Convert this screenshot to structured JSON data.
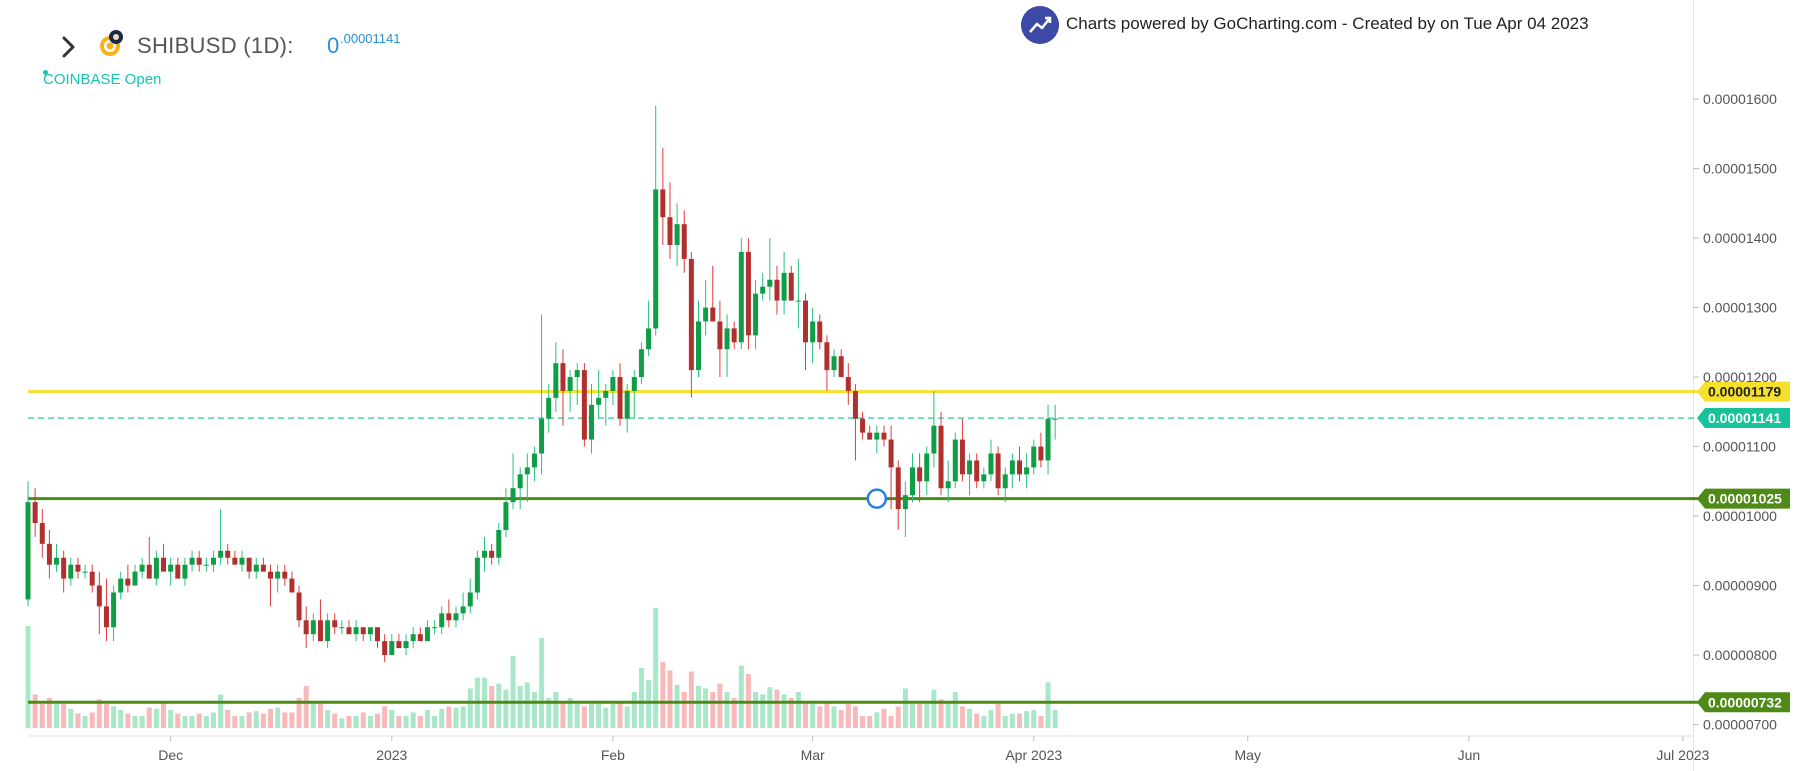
{
  "header": {
    "symbol_title": "SHIBUSD (1D):",
    "price_int": "0",
    "price_dec": ".00001141",
    "status": "COINBASE Open",
    "credit": "Charts powered by GoCharting.com - Created by  on Tue Apr 04 2023"
  },
  "icons": {
    "expand": "chevron-right-icon",
    "coin": "shiba-coin-icon",
    "brand": "trend-up-logo-icon"
  },
  "colors": {
    "up": "#27c27d",
    "down": "#e53a3a",
    "up_body": "#0f9d46",
    "down_body": "#b0302e",
    "resistance": "#f5e12b",
    "support": "#4d8a16",
    "current": "#19c29a",
    "accent": "#2a8fd8"
  },
  "chart_data": {
    "type": "candlestick",
    "title": "SHIBUSD (1D)",
    "x_ticks": [
      "Dec",
      "2023",
      "Feb",
      "Mar",
      "Apr 2023",
      "May",
      "Jun",
      "Jul 2023"
    ],
    "x_tick_dates": [
      "2022-12-01",
      "2023-01-01",
      "2023-02-01",
      "2023-03-01",
      "2023-04-01",
      "2023-05-01",
      "2023-06-01",
      "2023-07-01"
    ],
    "y_ticks": [
      "0.00001600",
      "0.00001500",
      "0.00001400",
      "0.00001300",
      "0.00001200",
      "0.00001100",
      "0.00001000",
      "0.00000900",
      "0.00000800",
      "0.00000700"
    ],
    "ylim": [
      6.95e-06,
      1.685e-05
    ],
    "xlim": [
      "2022-11-11",
      "2023-07-02"
    ],
    "lines": [
      {
        "label": "0.00001179",
        "value": 1.179e-05,
        "style": "solid",
        "color": "#f5e12b"
      },
      {
        "label": "0.00001141",
        "value": 1.141e-05,
        "style": "dashed",
        "color": "#19c29a"
      },
      {
        "label": "0.00001025",
        "value": 1.025e-05,
        "style": "solid",
        "color": "#4d8a16"
      },
      {
        "label": "0.00000732",
        "value": 7.32e-06,
        "style": "solid",
        "color": "#4d8a16"
      }
    ],
    "marker": {
      "date": "2023-03-10",
      "value": 1.025e-05
    },
    "candles": [
      [
        "2022-11-11",
        8.8e-06,
        1.05e-05,
        8.7e-06,
        1.02e-05,
        0.85
      ],
      [
        "2022-11-12",
        1.02e-05,
        1.04e-05,
        9.7e-06,
        9.9e-06,
        0.28
      ],
      [
        "2022-11-13",
        9.9e-06,
        1.01e-05,
        9.4e-06,
        9.6e-06,
        0.2
      ],
      [
        "2022-11-14",
        9.6e-06,
        9.8e-06,
        9.1e-06,
        9.3e-06,
        0.25
      ],
      [
        "2022-11-15",
        9.3e-06,
        9.6e-06,
        9.2e-06,
        9.4e-06,
        0.2
      ],
      [
        "2022-11-16",
        9.4e-06,
        9.5e-06,
        8.9e-06,
        9.1e-06,
        0.22
      ],
      [
        "2022-11-17",
        9.1e-06,
        9.4e-06,
        9e-06,
        9.3e-06,
        0.16
      ],
      [
        "2022-11-18",
        9.3e-06,
        9.4e-06,
        9.1e-06,
        9.2e-06,
        0.12
      ],
      [
        "2022-11-19",
        9.2e-06,
        9.3e-06,
        9.1e-06,
        9.2e-06,
        0.1
      ],
      [
        "2022-11-20",
        9.2e-06,
        9.3e-06,
        8.9e-06,
        9e-06,
        0.13
      ],
      [
        "2022-11-21",
        9e-06,
        9.2e-06,
        8.3e-06,
        8.7e-06,
        0.24
      ],
      [
        "2022-11-22",
        8.7e-06,
        9.1e-06,
        8.2e-06,
        8.4e-06,
        0.2
      ],
      [
        "2022-11-23",
        8.4e-06,
        9e-06,
        8.2e-06,
        8.9e-06,
        0.18
      ],
      [
        "2022-11-24",
        8.9e-06,
        9.2e-06,
        8.8e-06,
        9.1e-06,
        0.15
      ],
      [
        "2022-11-25",
        9.1e-06,
        9.3e-06,
        8.9e-06,
        9e-06,
        0.12
      ],
      [
        "2022-11-26",
        9e-06,
        9.3e-06,
        9e-06,
        9.2e-06,
        0.1
      ],
      [
        "2022-11-27",
        9.2e-06,
        9.4e-06,
        9.1e-06,
        9.3e-06,
        0.1
      ],
      [
        "2022-11-28",
        9.3e-06,
        9.7e-06,
        9.1e-06,
        9.1e-06,
        0.17
      ],
      [
        "2022-11-29",
        9.1e-06,
        9.5e-06,
        9e-06,
        9.4e-06,
        0.16
      ],
      [
        "2022-11-30",
        9.4e-06,
        9.6e-06,
        9.2e-06,
        9.2e-06,
        0.22
      ],
      [
        "2022-12-01",
        9.2e-06,
        9.4e-06,
        9e-06,
        9.3e-06,
        0.15
      ],
      [
        "2022-12-02",
        9.3e-06,
        9.4e-06,
        9.1e-06,
        9.1e-06,
        0.12
      ],
      [
        "2022-12-03",
        9.1e-06,
        9.4e-06,
        9e-06,
        9.3e-06,
        0.1
      ],
      [
        "2022-12-04",
        9.3e-06,
        9.5e-06,
        9.2e-06,
        9.4e-06,
        0.1
      ],
      [
        "2022-12-05",
        9.4e-06,
        9.5e-06,
        9.2e-06,
        9.3e-06,
        0.12
      ],
      [
        "2022-12-06",
        9.3e-06,
        9.4e-06,
        9.2e-06,
        9.3e-06,
        0.1
      ],
      [
        "2022-12-07",
        9.3e-06,
        9.5e-06,
        9.2e-06,
        9.4e-06,
        0.13
      ],
      [
        "2022-12-08",
        9.4e-06,
        1.01e-05,
        9.3e-06,
        9.5e-06,
        0.28
      ],
      [
        "2022-12-09",
        9.5e-06,
        9.6e-06,
        9.3e-06,
        9.4e-06,
        0.15
      ],
      [
        "2022-12-10",
        9.4e-06,
        9.5e-06,
        9.3e-06,
        9.3e-06,
        0.1
      ],
      [
        "2022-12-11",
        9.3e-06,
        9.5e-06,
        9.2e-06,
        9.4e-06,
        0.1
      ],
      [
        "2022-12-12",
        9.4e-06,
        9.4e-06,
        9.1e-06,
        9.2e-06,
        0.13
      ],
      [
        "2022-12-13",
        9.2e-06,
        9.4e-06,
        9.1e-06,
        9.3e-06,
        0.14
      ],
      [
        "2022-12-14",
        9.3e-06,
        9.4e-06,
        9.2e-06,
        9.2e-06,
        0.12
      ],
      [
        "2022-12-15",
        9.2e-06,
        9.3e-06,
        8.7e-06,
        9.1e-06,
        0.16
      ],
      [
        "2022-12-16",
        9.1e-06,
        9.3e-06,
        8.9e-06,
        9.2e-06,
        0.17
      ],
      [
        "2022-12-17",
        9.2e-06,
        9.3e-06,
        9e-06,
        9.1e-06,
        0.13
      ],
      [
        "2022-12-18",
        9.1e-06,
        9.2e-06,
        8.9e-06,
        8.9e-06,
        0.13
      ],
      [
        "2022-12-19",
        8.9e-06,
        9e-06,
        8.4e-06,
        8.5e-06,
        0.25
      ],
      [
        "2022-12-20",
        8.5e-06,
        8.7e-06,
        8.1e-06,
        8.3e-06,
        0.35
      ],
      [
        "2022-12-21",
        8.3e-06,
        8.6e-06,
        8.2e-06,
        8.5e-06,
        0.2
      ],
      [
        "2022-12-22",
        8.5e-06,
        8.8e-06,
        8.2e-06,
        8.2e-06,
        0.22
      ],
      [
        "2022-12-23",
        8.2e-06,
        8.6e-06,
        8.1e-06,
        8.5e-06,
        0.15
      ],
      [
        "2022-12-24",
        8.5e-06,
        8.6e-06,
        8.3e-06,
        8.4e-06,
        0.12
      ],
      [
        "2022-12-25",
        8.4e-06,
        8.5e-06,
        8.3e-06,
        8.4e-06,
        0.08
      ],
      [
        "2022-12-26",
        8.4e-06,
        8.5e-06,
        8.3e-06,
        8.3e-06,
        0.1
      ],
      [
        "2022-12-27",
        8.3e-06,
        8.5e-06,
        8.2e-06,
        8.4e-06,
        0.1
      ],
      [
        "2022-12-28",
        8.4e-06,
        8.4e-06,
        8.2e-06,
        8.3e-06,
        0.13
      ],
      [
        "2022-12-29",
        8.3e-06,
        8.4e-06,
        8.2e-06,
        8.4e-06,
        0.1
      ],
      [
        "2022-12-30",
        8.4e-06,
        8.4e-06,
        8.1e-06,
        8.2e-06,
        0.12
      ],
      [
        "2022-12-31",
        8.2e-06,
        8.3e-06,
        7.9e-06,
        8e-06,
        0.18
      ],
      [
        "2023-01-01",
        8e-06,
        8.3e-06,
        8e-06,
        8.2e-06,
        0.15
      ],
      [
        "2023-01-02",
        8.2e-06,
        8.3e-06,
        8.1e-06,
        8.1e-06,
        0.1
      ],
      [
        "2023-01-03",
        8.1e-06,
        8.3e-06,
        8e-06,
        8.2e-06,
        0.1
      ],
      [
        "2023-01-04",
        8.2e-06,
        8.4e-06,
        8.1e-06,
        8.3e-06,
        0.13
      ],
      [
        "2023-01-05",
        8.3e-06,
        8.4e-06,
        8.2e-06,
        8.2e-06,
        0.1
      ],
      [
        "2023-01-06",
        8.2e-06,
        8.5e-06,
        8.2e-06,
        8.4e-06,
        0.15
      ],
      [
        "2023-01-07",
        8.4e-06,
        8.5e-06,
        8.3e-06,
        8.4e-06,
        0.1
      ],
      [
        "2023-01-08",
        8.4e-06,
        8.7e-06,
        8.3e-06,
        8.6e-06,
        0.16
      ],
      [
        "2023-01-09",
        8.6e-06,
        8.8e-06,
        8.4e-06,
        8.5e-06,
        0.18
      ],
      [
        "2023-01-10",
        8.5e-06,
        8.7e-06,
        8.4e-06,
        8.6e-06,
        0.17
      ],
      [
        "2023-01-11",
        8.6e-06,
        8.9e-06,
        8.5e-06,
        8.7e-06,
        0.18
      ],
      [
        "2023-01-12",
        8.7e-06,
        9.1e-06,
        8.6e-06,
        8.9e-06,
        0.33
      ],
      [
        "2023-01-13",
        8.9e-06,
        9.5e-06,
        8.8e-06,
        9.4e-06,
        0.42
      ],
      [
        "2023-01-14",
        9.4e-06,
        9.7e-06,
        9.2e-06,
        9.5e-06,
        0.42
      ],
      [
        "2023-01-15",
        9.5e-06,
        9.6e-06,
        9.3e-06,
        9.4e-06,
        0.35
      ],
      [
        "2023-01-16",
        9.4e-06,
        9.9e-06,
        9.3e-06,
        9.8e-06,
        0.37
      ],
      [
        "2023-01-17",
        9.8e-06,
        1.04e-05,
        9.7e-06,
        1.02e-05,
        0.32
      ],
      [
        "2023-01-18",
        1.02e-05,
        1.09e-05,
        1.01e-05,
        1.04e-05,
        0.6
      ],
      [
        "2023-01-19",
        1.04e-05,
        1.07e-05,
        1.01e-05,
        1.06e-05,
        0.35
      ],
      [
        "2023-01-20",
        1.06e-05,
        1.09e-05,
        1.02e-05,
        1.07e-05,
        0.38
      ],
      [
        "2023-01-21",
        1.07e-05,
        1.1e-05,
        1.05e-05,
        1.09e-05,
        0.3
      ],
      [
        "2023-01-22",
        1.09e-05,
        1.29e-05,
        1.06e-05,
        1.14e-05,
        0.75
      ],
      [
        "2023-01-23",
        1.14e-05,
        1.19e-05,
        1.12e-05,
        1.17e-05,
        0.25
      ],
      [
        "2023-01-24",
        1.17e-05,
        1.25e-05,
        1.15e-05,
        1.22e-05,
        0.3
      ],
      [
        "2023-01-25",
        1.22e-05,
        1.24e-05,
        1.13e-05,
        1.18e-05,
        0.22
      ],
      [
        "2023-01-26",
        1.18e-05,
        1.21e-05,
        1.15e-05,
        1.2e-05,
        0.25
      ],
      [
        "2023-01-27",
        1.2e-05,
        1.22e-05,
        1.16e-05,
        1.21e-05,
        0.2
      ],
      [
        "2023-01-28",
        1.21e-05,
        1.22e-05,
        1.1e-05,
        1.11e-05,
        0.18
      ],
      [
        "2023-01-29",
        1.11e-05,
        1.19e-05,
        1.09e-05,
        1.16e-05,
        0.2
      ],
      [
        "2023-01-30",
        1.16e-05,
        1.21e-05,
        1.14e-05,
        1.17e-05,
        0.22
      ],
      [
        "2023-01-31",
        1.17e-05,
        1.19e-05,
        1.13e-05,
        1.18e-05,
        0.17
      ],
      [
        "2023-02-01",
        1.18e-05,
        1.21e-05,
        1.16e-05,
        1.2e-05,
        0.2
      ],
      [
        "2023-02-02",
        1.2e-05,
        1.22e-05,
        1.13e-05,
        1.14e-05,
        0.22
      ],
      [
        "2023-02-03",
        1.14e-05,
        1.19e-05,
        1.12e-05,
        1.18e-05,
        0.18
      ],
      [
        "2023-02-04",
        1.18e-05,
        1.21e-05,
        1.14e-05,
        1.2e-05,
        0.3
      ],
      [
        "2023-02-05",
        1.2e-05,
        1.25e-05,
        1.19e-05,
        1.24e-05,
        0.5
      ],
      [
        "2023-02-06",
        1.24e-05,
        1.31e-05,
        1.23e-05,
        1.27e-05,
        0.4
      ],
      [
        "2023-02-07",
        1.27e-05,
        1.59e-05,
        1.26e-05,
        1.47e-05,
        1.0
      ],
      [
        "2023-02-08",
        1.47e-05,
        1.53e-05,
        1.39e-05,
        1.43e-05,
        0.55
      ],
      [
        "2023-02-09",
        1.43e-05,
        1.48e-05,
        1.37e-05,
        1.39e-05,
        0.48
      ],
      [
        "2023-02-10",
        1.39e-05,
        1.45e-05,
        1.36e-05,
        1.42e-05,
        0.36
      ],
      [
        "2023-02-11",
        1.42e-05,
        1.44e-05,
        1.35e-05,
        1.37e-05,
        0.3
      ],
      [
        "2023-02-12",
        1.37e-05,
        1.38e-05,
        1.17e-05,
        1.21e-05,
        0.47
      ],
      [
        "2023-02-13",
        1.21e-05,
        1.31e-05,
        1.2e-05,
        1.28e-05,
        0.35
      ],
      [
        "2023-02-14",
        1.28e-05,
        1.34e-05,
        1.26e-05,
        1.3e-05,
        0.33
      ],
      [
        "2023-02-15",
        1.3e-05,
        1.36e-05,
        1.28e-05,
        1.28e-05,
        0.3
      ],
      [
        "2023-02-16",
        1.28e-05,
        1.31e-05,
        1.2e-05,
        1.24e-05,
        0.37
      ],
      [
        "2023-02-17",
        1.24e-05,
        1.29e-05,
        1.2e-05,
        1.27e-05,
        0.3
      ],
      [
        "2023-02-18",
        1.27e-05,
        1.28e-05,
        1.24e-05,
        1.25e-05,
        0.25
      ],
      [
        "2023-02-19",
        1.25e-05,
        1.4e-05,
        1.24e-05,
        1.38e-05,
        0.52
      ],
      [
        "2023-02-20",
        1.38e-05,
        1.4e-05,
        1.24e-05,
        1.26e-05,
        0.45
      ],
      [
        "2023-02-21",
        1.26e-05,
        1.34e-05,
        1.24e-05,
        1.32e-05,
        0.3
      ],
      [
        "2023-02-22",
        1.32e-05,
        1.35e-05,
        1.31e-05,
        1.33e-05,
        0.28
      ],
      [
        "2023-02-23",
        1.33e-05,
        1.4e-05,
        1.31e-05,
        1.34e-05,
        0.34
      ],
      [
        "2023-02-24",
        1.34e-05,
        1.36e-05,
        1.29e-05,
        1.31e-05,
        0.32
      ],
      [
        "2023-02-25",
        1.31e-05,
        1.38e-05,
        1.29e-05,
        1.35e-05,
        0.28
      ],
      [
        "2023-02-26",
        1.35e-05,
        1.36e-05,
        1.31e-05,
        1.31e-05,
        0.25
      ],
      [
        "2023-02-27",
        1.31e-05,
        1.37e-05,
        1.27e-05,
        1.31e-05,
        0.3
      ],
      [
        "2023-02-28",
        1.31e-05,
        1.32e-05,
        1.21e-05,
        1.25e-05,
        0.22
      ],
      [
        "2023-03-01",
        1.25e-05,
        1.3e-05,
        1.22e-05,
        1.28e-05,
        0.2
      ],
      [
        "2023-03-02",
        1.28e-05,
        1.29e-05,
        1.24e-05,
        1.25e-05,
        0.18
      ],
      [
        "2023-03-03",
        1.25e-05,
        1.26e-05,
        1.18e-05,
        1.21e-05,
        0.22
      ],
      [
        "2023-03-04",
        1.21e-05,
        1.24e-05,
        1.2e-05,
        1.23e-05,
        0.18
      ],
      [
        "2023-03-05",
        1.23e-05,
        1.24e-05,
        1.2e-05,
        1.2e-05,
        0.15
      ],
      [
        "2023-03-06",
        1.2e-05,
        1.22e-05,
        1.16e-05,
        1.18e-05,
        0.2
      ],
      [
        "2023-03-07",
        1.18e-05,
        1.19e-05,
        1.08e-05,
        1.14e-05,
        0.18
      ],
      [
        "2023-03-08",
        1.14e-05,
        1.15e-05,
        1.11e-05,
        1.12e-05,
        0.1
      ],
      [
        "2023-03-09",
        1.12e-05,
        1.13e-05,
        1.11e-05,
        1.11e-05,
        0.1
      ],
      [
        "2023-03-10",
        1.11e-05,
        1.13e-05,
        1.09e-05,
        1.12e-05,
        0.13
      ],
      [
        "2023-03-11",
        1.12e-05,
        1.13e-05,
        1.1e-05,
        1.11e-05,
        0.16
      ],
      [
        "2023-03-12",
        1.11e-05,
        1.13e-05,
        1.01e-05,
        1.07e-05,
        0.1
      ],
      [
        "2023-03-13",
        1.07e-05,
        1.08e-05,
        9.8e-06,
        1.01e-05,
        0.18
      ],
      [
        "2023-03-14",
        1.01e-05,
        1.05e-05,
        9.7e-06,
        1.03e-05,
        0.33
      ],
      [
        "2023-03-15",
        1.03e-05,
        1.09e-05,
        1.02e-05,
        1.07e-05,
        0.2
      ],
      [
        "2023-03-16",
        1.07e-05,
        1.09e-05,
        1.02e-05,
        1.05e-05,
        0.2
      ],
      [
        "2023-03-17",
        1.05e-05,
        1.1e-05,
        1.03e-05,
        1.09e-05,
        0.2
      ],
      [
        "2023-03-18",
        1.09e-05,
        1.18e-05,
        1.07e-05,
        1.13e-05,
        0.32
      ],
      [
        "2023-03-19",
        1.13e-05,
        1.15e-05,
        1.03e-05,
        1.04e-05,
        0.24
      ],
      [
        "2023-03-20",
        1.04e-05,
        1.08e-05,
        1.02e-05,
        1.05e-05,
        0.22
      ],
      [
        "2023-03-21",
        1.05e-05,
        1.12e-05,
        1.04e-05,
        1.11e-05,
        0.3
      ],
      [
        "2023-03-22",
        1.11e-05,
        1.14e-05,
        1.05e-05,
        1.06e-05,
        0.18
      ],
      [
        "2023-03-23",
        1.06e-05,
        1.09e-05,
        1.03e-05,
        1.08e-05,
        0.16
      ],
      [
        "2023-03-24",
        1.08e-05,
        1.09e-05,
        1.04e-05,
        1.05e-05,
        0.12
      ],
      [
        "2023-03-25",
        1.05e-05,
        1.07e-05,
        1.04e-05,
        1.06e-05,
        0.1
      ],
      [
        "2023-03-26",
        1.06e-05,
        1.11e-05,
        1.05e-05,
        1.09e-05,
        0.15
      ],
      [
        "2023-03-27",
        1.09e-05,
        1.1e-05,
        1.03e-05,
        1.04e-05,
        0.2
      ],
      [
        "2023-03-28",
        1.04e-05,
        1.07e-05,
        1.02e-05,
        1.06e-05,
        0.1
      ],
      [
        "2023-03-29",
        1.06e-05,
        1.09e-05,
        1.04e-05,
        1.08e-05,
        0.12
      ],
      [
        "2023-03-30",
        1.08e-05,
        1.1e-05,
        1.05e-05,
        1.06e-05,
        0.12
      ],
      [
        "2023-03-31",
        1.06e-05,
        1.09e-05,
        1.04e-05,
        1.07e-05,
        0.14
      ],
      [
        "2023-04-01",
        1.07e-05,
        1.11e-05,
        1.06e-05,
        1.1e-05,
        0.15
      ],
      [
        "2023-04-02",
        1.1e-05,
        1.12e-05,
        1.07e-05,
        1.08e-05,
        0.1
      ],
      [
        "2023-04-03",
        1.08e-05,
        1.16e-05,
        1.06e-05,
        1.14e-05,
        0.38
      ],
      [
        "2023-04-04",
        1.14e-05,
        1.16e-05,
        1.11e-05,
        1.14e-05,
        0.15
      ]
    ]
  }
}
